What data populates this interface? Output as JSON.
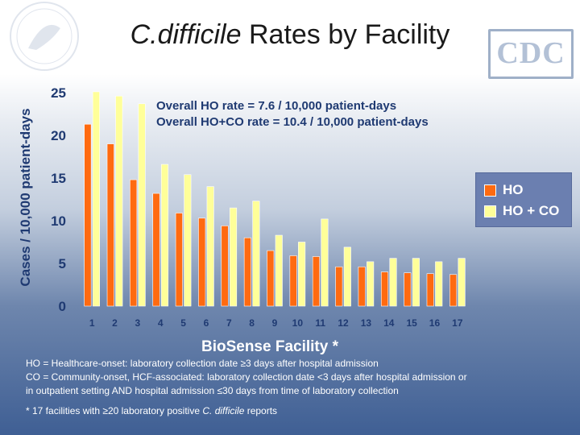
{
  "slide": {
    "title_italic": "C.difficile",
    "title_rest": " Rates by Facility",
    "logo_text": "CDC"
  },
  "chart_data": {
    "type": "bar",
    "categories": [
      "1",
      "2",
      "3",
      "4",
      "5",
      "6",
      "7",
      "8",
      "9",
      "10",
      "11",
      "12",
      "13",
      "14",
      "15",
      "16",
      "17"
    ],
    "series": [
      {
        "name": "HO",
        "color": "#ff6a10",
        "values": [
          21.3,
          19.0,
          14.8,
          13.2,
          10.9,
          10.3,
          9.4,
          8.0,
          6.5,
          5.9,
          5.8,
          4.6,
          4.6,
          4.0,
          3.9,
          3.8,
          3.7
        ]
      },
      {
        "name": "HO + CO",
        "color": "#ffff99",
        "values": [
          25.1,
          24.6,
          23.7,
          16.6,
          15.4,
          14.0,
          11.5,
          12.3,
          8.3,
          7.5,
          10.2,
          6.9,
          5.2,
          5.6,
          5.6,
          5.2,
          5.6
        ]
      }
    ],
    "ylabel": "Cases / 10,000 patient-days",
    "xlabel": "BioSense Facility *",
    "ylim": [
      0,
      25
    ],
    "yticks": [
      "0",
      "5",
      "10",
      "15",
      "20",
      "25"
    ],
    "grid": false,
    "legend_position": "right",
    "annotations": [
      "Overall HO rate = 7.6 / 10,000 patient-days",
      "Overall HO+CO rate = 10.4 / 10,000 patient-days"
    ]
  },
  "footnotes": {
    "line1": "HO = Healthcare-onset:  laboratory collection date ≥3 days after hospital admission",
    "line2": "CO = Community-onset, HCF-associated:  laboratory collection date <3 days after hospital admission or",
    "line3": "in outpatient setting AND hospital admission ≤30 days from time of laboratory collection",
    "star_prefix": "* 17 facilities with ≥20 laboratory positive ",
    "star_italic": "C. difficile",
    "star_suffix": " reports"
  }
}
